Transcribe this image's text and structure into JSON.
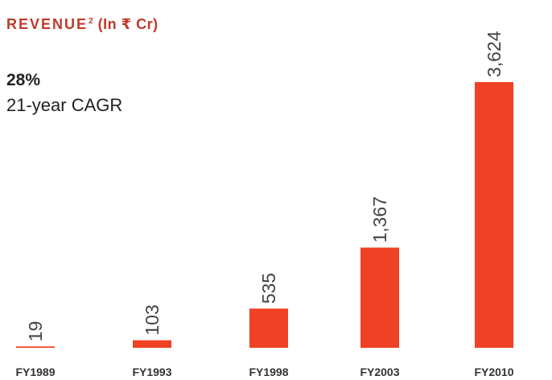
{
  "header": {
    "title": "REVENUE",
    "title_sup": "2",
    "title_unit": "(In ₹ Cr)"
  },
  "metric": {
    "value": "28%",
    "label": "21-year CAGR"
  },
  "colors": {
    "bar": "#f04124",
    "title": "#c0392b",
    "text": "#222222"
  },
  "chart_data": {
    "type": "bar",
    "title": "REVENUE (In ₹ Cr)",
    "categories": [
      "FY1989",
      "FY1993",
      "FY1998",
      "FY2003",
      "FY2010"
    ],
    "values": [
      19,
      103,
      535,
      1367,
      3624
    ],
    "value_labels": [
      "19",
      "103",
      "535",
      "1,367",
      "3,624"
    ],
    "ylim": [
      0,
      3624
    ],
    "grid": false,
    "legend": "none",
    "value_label_orientation": "vertical"
  }
}
